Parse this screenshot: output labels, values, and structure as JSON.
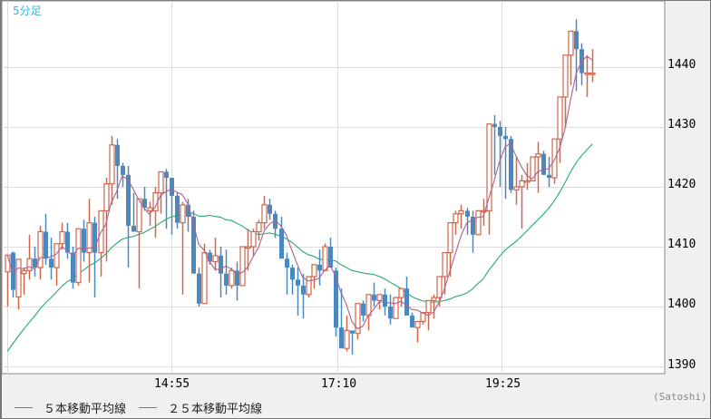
{
  "chart_data": {
    "type": "candlestick",
    "title": "",
    "timeframe_label": "5分足",
    "xlabel": "",
    "ylabel": "",
    "ylim": [
      1388.9,
      1450.3
    ],
    "y_ticks": [
      1390,
      1400,
      1410,
      1420,
      1430,
      1440
    ],
    "x_ticks": [
      {
        "label": "14:55",
        "index": 29.5
      },
      {
        "label": "17:10",
        "index": 60.3
      },
      {
        "label": "19:25",
        "index": 90.3
      }
    ],
    "grid": true,
    "legend_position": "bottom-left",
    "colors": {
      "up": "#d0664a",
      "down": "#4a89c0",
      "ma5": "#b0608c",
      "ma25": "#2aa870",
      "grid": "#dddddd"
    },
    "series": [
      {
        "name": "5本移動平均線",
        "type": "line",
        "color": "#b0608c"
      },
      {
        "name": "２５本移動平均線",
        "type": "line",
        "color": "#2aa870"
      }
    ],
    "candles": [
      [
        1405.8,
        1407.5,
        1400,
        1408.6
      ],
      [
        1409,
        1409.2,
        1401.5,
        1402.8
      ],
      [
        1401.6,
        1403.2,
        1399.5,
        1407.9
      ],
      [
        1405.5,
        1406.5,
        1402,
        1406
      ],
      [
        1406,
        1412,
        1404.5,
        1408
      ],
      [
        1408,
        1410,
        1405,
        1406.5
      ],
      [
        1406.5,
        1413.5,
        1404.5,
        1412.5
      ],
      [
        1412.5,
        1415.5,
        1407,
        1408
      ],
      [
        1408,
        1411.5,
        1404.5,
        1406.5
      ],
      [
        1406.5,
        1409,
        1403.5,
        1410.5
      ],
      [
        1410.5,
        1414,
        1409.5,
        1412.5
      ],
      [
        1412.5,
        1414,
        1408,
        1409
      ],
      [
        1409,
        1410,
        1403,
        1404
      ],
      [
        1404,
        1413,
        1403.5,
        1413
      ],
      [
        1413,
        1414.5,
        1407.5,
        1409
      ],
      [
        1409,
        1418,
        1404,
        1414
      ],
      [
        1414,
        1415,
        1401.5,
        1409
      ],
      [
        1409,
        1416,
        1405,
        1416
      ],
      [
        1416,
        1421.5,
        1407.5,
        1420.5
      ],
      [
        1420.5,
        1428.5,
        1417,
        1427
      ],
      [
        1427,
        1428,
        1418,
        1423.5
      ],
      [
        1423.5,
        1424,
        1420,
        1422
      ],
      [
        1422,
        1423.5,
        1406.5,
        1413.5
      ],
      [
        1413.5,
        1419,
        1414.5,
        1412.5
      ],
      [
        1412.5,
        1418,
        1403,
        1418
      ],
      [
        1418,
        1420,
        1416,
        1416.5
      ],
      [
        1416,
        1417.5,
        1413.5,
        1416.5
      ],
      [
        1416,
        1420,
        1411.5,
        1419
      ],
      [
        1419,
        1421,
        1415.5,
        1422.5
      ],
      [
        1422.5,
        1423,
        1413,
        1421.5
      ],
      [
        1421.5,
        1421.5,
        1412,
        1418.5
      ],
      [
        1418.5,
        1419,
        1413,
        1414
      ],
      [
        1414,
        1417.5,
        1402,
        1417
      ],
      [
        1417,
        1418,
        1412.5,
        1415
      ],
      [
        1415,
        1416,
        1407.5,
        1405.5
      ],
      [
        1405.5,
        1406.5,
        1400,
        1400.5
      ],
      [
        1400.5,
        1410.5,
        1400.5,
        1409
      ],
      [
        1409,
        1409.5,
        1407,
        1407.5
      ],
      [
        1407.5,
        1411.5,
        1406,
        1408.5
      ],
      [
        1408.5,
        1410,
        1401.5,
        1405.5
      ],
      [
        1405.5,
        1409.5,
        1402,
        1403.5
      ],
      [
        1403.5,
        1406.5,
        1403,
        1406
      ],
      [
        1406,
        1407.5,
        1401,
        1403.5
      ],
      [
        1403.5,
        1410,
        1406.5,
        1410
      ],
      [
        1410,
        1413,
        1406,
        1410
      ],
      [
        1410,
        1413,
        1408.5,
        1412.5
      ],
      [
        1412.5,
        1414.5,
        1411,
        1414
      ],
      [
        1414,
        1418.5,
        1413,
        1417
      ],
      [
        1417,
        1418,
        1414.5,
        1415.5
      ],
      [
        1415.5,
        1416,
        1411.5,
        1413
      ],
      [
        1413,
        1415,
        1408,
        1408
      ],
      [
        1408,
        1409,
        1402,
        1406.5
      ],
      [
        1406.5,
        1407,
        1402,
        1404.5
      ],
      [
        1404.5,
        1406.5,
        1398.5,
        1403.5
      ],
      [
        1403.5,
        1405.5,
        1398,
        1402
      ],
      [
        1402,
        1405,
        1401.5,
        1405
      ],
      [
        1405,
        1406.5,
        1403,
        1407
      ],
      [
        1407,
        1409.5,
        1403.5,
        1406
      ],
      [
        1406,
        1410.5,
        1406,
        1410
      ],
      [
        1410,
        1411.5,
        1406.5,
        1406.5
      ],
      [
        1406,
        1406.5,
        1395,
        1396.5
      ],
      [
        1396.5,
        1403,
        1395,
        1393
      ],
      [
        1393,
        1398.5,
        1392.5,
        1396
      ],
      [
        1396,
        1396,
        1392,
        1395.5
      ],
      [
        1395.5,
        1398.5,
        1394.5,
        1400.5
      ],
      [
        1400.5,
        1401,
        1397.5,
        1398.5
      ],
      [
        1398.5,
        1401,
        1396,
        1402
      ],
      [
        1402,
        1404,
        1400,
        1401
      ],
      [
        1401,
        1402,
        1399.5,
        1402
      ],
      [
        1402,
        1403,
        1398.5,
        1400
      ],
      [
        1400,
        1402,
        1397,
        1398
      ],
      [
        1398,
        1401,
        1398,
        1401.5
      ],
      [
        1401.5,
        1403,
        1400,
        1403
      ],
      [
        1403,
        1405,
        1402,
        1398.5
      ],
      [
        1398.5,
        1399,
        1396.5,
        1396.5
      ],
      [
        1396.5,
        1397,
        1394,
        1397.5
      ],
      [
        1397.5,
        1398,
        1397,
        1399
      ],
      [
        1399,
        1399.5,
        1396,
        1401
      ],
      [
        1401,
        1402,
        1398,
        1401.5
      ],
      [
        1401.5,
        1404,
        1400,
        1405
      ],
      [
        1405,
        1408,
        1402,
        1409
      ],
      [
        1409,
        1410,
        1405,
        1414
      ],
      [
        1414,
        1416,
        1412,
        1415.5
      ],
      [
        1415.5,
        1417,
        1413,
        1416
      ],
      [
        1416,
        1416.5,
        1412,
        1415
      ],
      [
        1415,
        1416,
        1409,
        1412
      ],
      [
        1412,
        1416,
        1412,
        1416
      ],
      [
        1416,
        1418,
        1413.5,
        1416
      ],
      [
        1416,
        1418,
        1412,
        1430.5
      ],
      [
        1430.5,
        1432,
        1422,
        1430
      ],
      [
        1430,
        1431,
        1420,
        1428.5
      ],
      [
        1428.5,
        1430,
        1418,
        1428
      ],
      [
        1428,
        1428.5,
        1419,
        1419.5
      ],
      [
        1419.5,
        1425,
        1417,
        1420
      ],
      [
        1420,
        1422,
        1413,
        1421
      ],
      [
        1421,
        1424,
        1419.5,
        1421
      ],
      [
        1421,
        1423,
        1421,
        1425
      ],
      [
        1425,
        1427.5,
        1419,
        1425.5
      ],
      [
        1425.5,
        1426,
        1423,
        1422
      ],
      [
        1422,
        1425,
        1420,
        1421.5
      ],
      [
        1421.5,
        1428,
        1420.5,
        1428
      ],
      [
        1428,
        1430,
        1424,
        1435
      ],
      [
        1435,
        1442,
        1430,
        1442
      ],
      [
        1442,
        1446,
        1437,
        1446
      ],
      [
        1446,
        1448,
        1436,
        1443
      ],
      [
        1443,
        1444,
        1437,
        1439
      ],
      [
        1439,
        1442,
        1435,
        1439
      ],
      [
        1439,
        1443,
        1437.5,
        1439
      ]
    ]
  },
  "ui": {
    "timeframe": "5分足",
    "y_labels": [
      "1440",
      "1430",
      "1420",
      "1410",
      "1400",
      "1390"
    ],
    "x_labels": [
      "14:55",
      "17:10",
      "19:25"
    ],
    "legend": [
      {
        "label": "５本移動平均線",
        "color": "#b0608c"
      },
      {
        "label": "２５本移動平均線",
        "color": "#2aa870"
      }
    ],
    "credit": "(Satoshi)"
  }
}
